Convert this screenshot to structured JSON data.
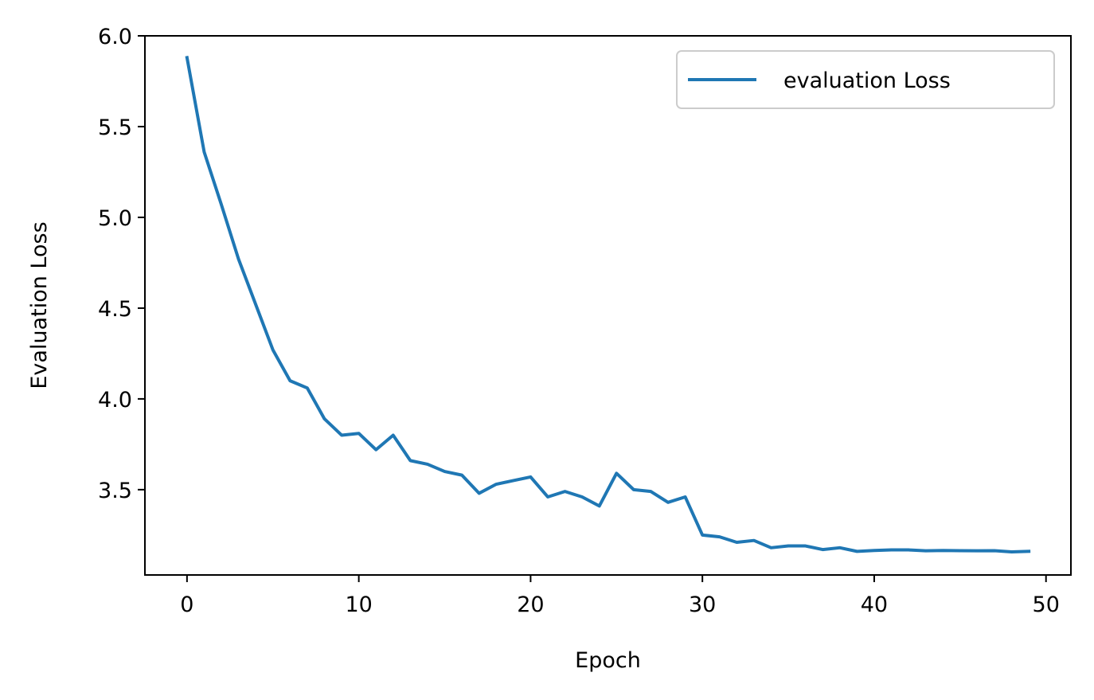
{
  "chart_data": {
    "type": "line",
    "xlabel": "Epoch",
    "ylabel": "Evaluation Loss",
    "xlim": [
      -2.45,
      51.45
    ],
    "ylim": [
      3.03,
      6.0
    ],
    "xticks": [
      0,
      10,
      20,
      30,
      40,
      50
    ],
    "yticks": [
      3.5,
      4.0,
      4.5,
      5.0,
      5.5,
      6.0
    ],
    "xtick_labels": [
      "0",
      "10",
      "20",
      "30",
      "40",
      "50"
    ],
    "ytick_labels": [
      "3.5",
      "4.0",
      "4.5",
      "5.0",
      "5.5",
      "6.0"
    ],
    "grid": false,
    "legend_position": "top-right",
    "series": [
      {
        "name": "evaluation Loss",
        "color": "#1f77b4",
        "x": [
          0,
          1,
          2,
          3,
          4,
          5,
          6,
          7,
          8,
          9,
          10,
          11,
          12,
          13,
          14,
          15,
          16,
          17,
          18,
          19,
          20,
          21,
          22,
          23,
          24,
          25,
          26,
          27,
          28,
          29,
          30,
          31,
          32,
          33,
          34,
          35,
          36,
          37,
          38,
          39,
          40,
          41,
          42,
          43,
          44,
          45,
          46,
          47,
          48,
          49
        ],
        "values": [
          5.88,
          5.36,
          5.07,
          4.77,
          4.52,
          4.27,
          4.1,
          4.06,
          3.89,
          3.8,
          3.81,
          3.72,
          3.8,
          3.66,
          3.64,
          3.6,
          3.58,
          3.48,
          3.53,
          3.55,
          3.57,
          3.46,
          3.49,
          3.46,
          3.41,
          3.59,
          3.5,
          3.49,
          3.43,
          3.46,
          3.25,
          3.24,
          3.21,
          3.22,
          3.18,
          3.19,
          3.19,
          3.17,
          3.18,
          3.16,
          3.165,
          3.168,
          3.168,
          3.163,
          3.165,
          3.164,
          3.163,
          3.164,
          3.157,
          3.16
        ]
      }
    ]
  }
}
